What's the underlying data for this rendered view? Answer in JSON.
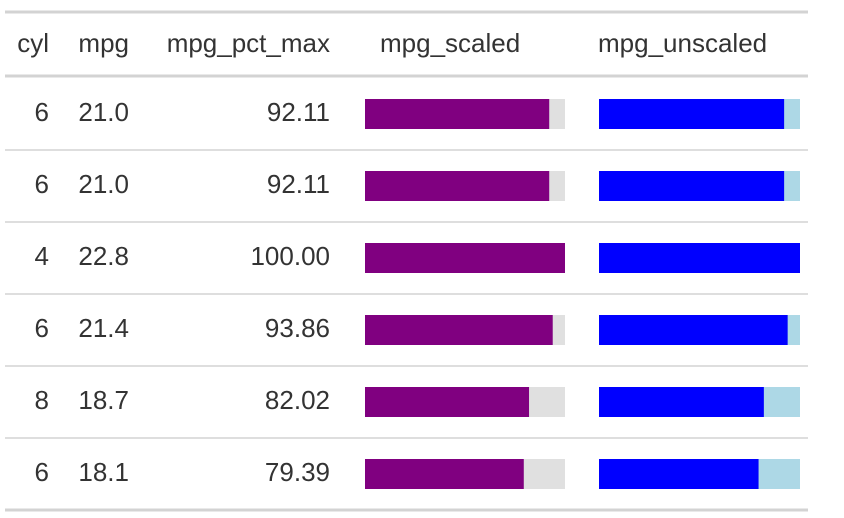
{
  "table": {
    "columns": [
      "cyl",
      "mpg",
      "mpg_pct_max",
      "mpg_scaled",
      "mpg_unscaled"
    ],
    "rows": [
      [
        "6",
        "21.0",
        "92.11"
      ],
      [
        "6",
        "21.0",
        "92.11"
      ],
      [
        "4",
        "22.8",
        "100.00"
      ],
      [
        "6",
        "21.4",
        "93.86"
      ],
      [
        "8",
        "18.7",
        "82.02"
      ],
      [
        "6",
        "18.1",
        "79.39"
      ]
    ],
    "bar_columns": [
      {
        "source_column": 2,
        "color": "#800080",
        "background": "#e0e0e0"
      },
      {
        "source_column": 1,
        "color": "#0000ff",
        "background": "#add8e6"
      }
    ]
  }
}
